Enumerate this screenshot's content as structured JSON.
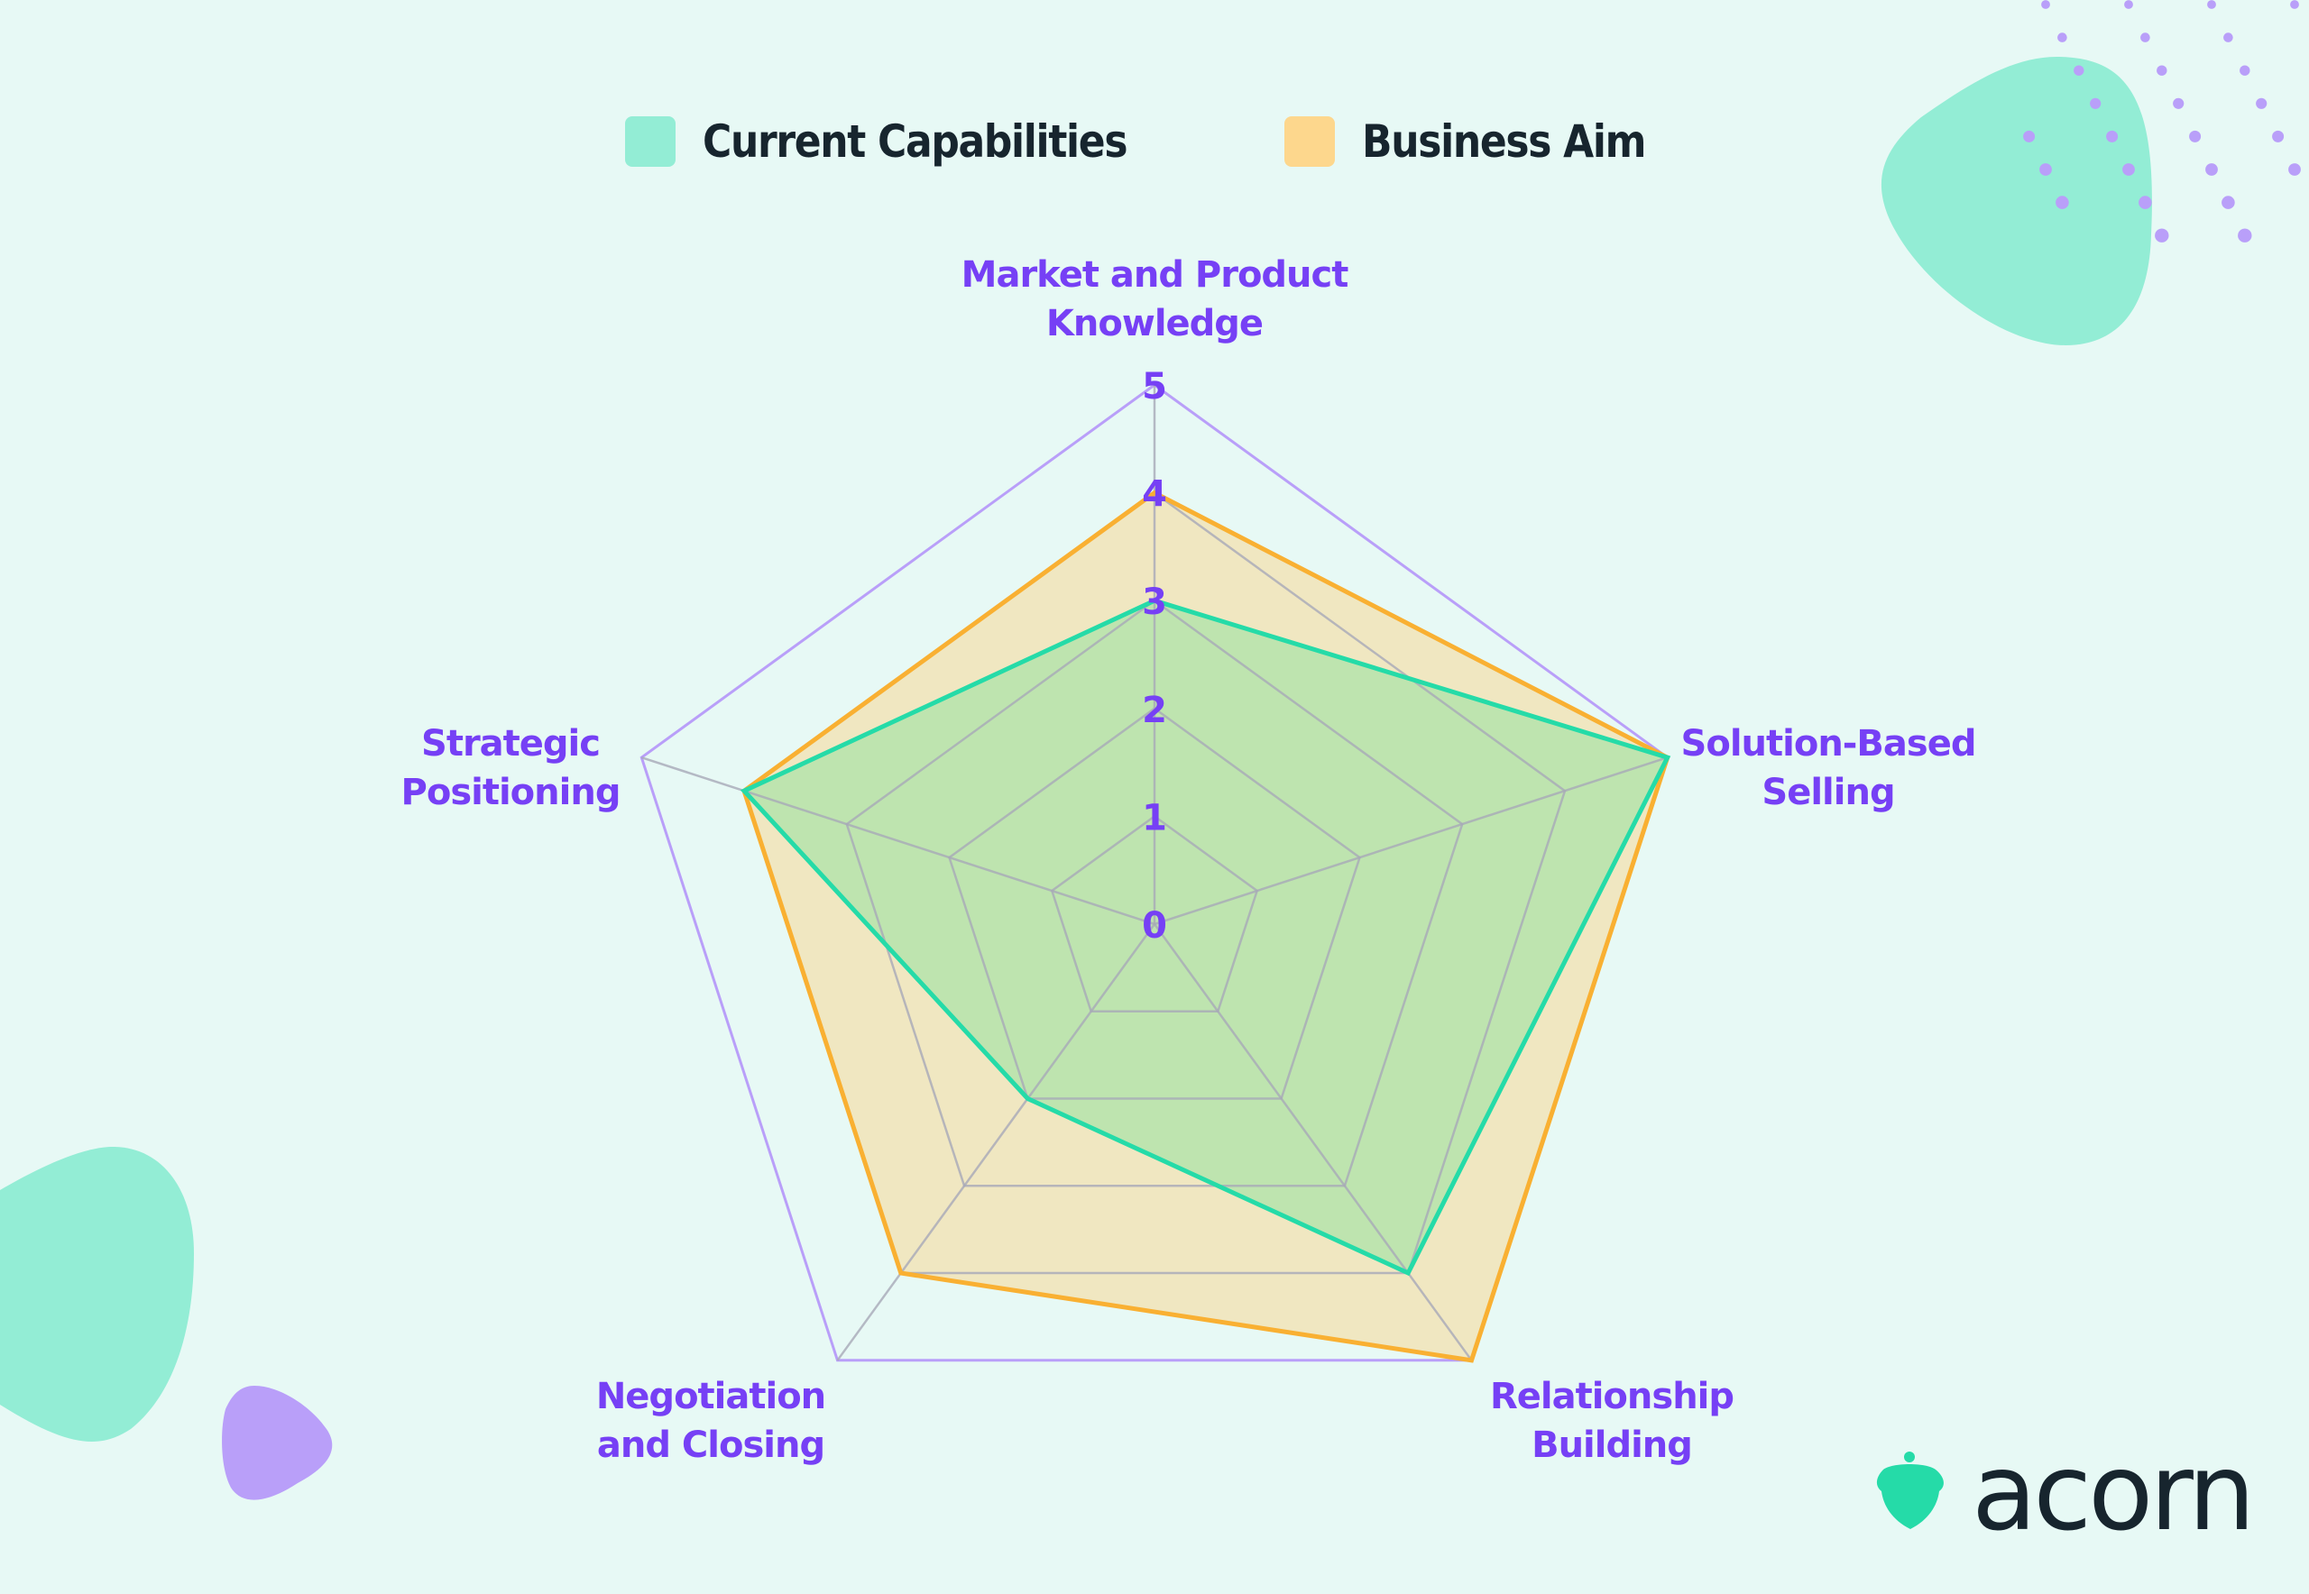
{
  "legend": {
    "items": [
      {
        "label": "Current Capabilities",
        "color": "#93edd5"
      },
      {
        "label": "Business Aim",
        "color": "#fdd78d"
      }
    ]
  },
  "brand": {
    "name": "acorn",
    "logo_icon": "acorn-icon",
    "logo_color": "#25dba8",
    "text_color": "#17252e"
  },
  "colors": {
    "background": "#e7f9f5",
    "label": "#7640f5",
    "current_stroke": "#25dba8",
    "current_fill": "rgba(150,226,160,0.55)",
    "aim_stroke": "#f9b032",
    "aim_fill": "rgba(248,216,150,0.55)",
    "grid_outer": "#b99ff9",
    "grid_inner": "#a7a9b8",
    "blob_green": "#93edd5",
    "blob_purple": "#b99ff9"
  },
  "chart_data": {
    "type": "radar",
    "title": "",
    "categories": [
      "Market and Product Knowledge",
      "Solution-Based Selling",
      "Relationship Building",
      "Negotiation and Closing",
      "Strategic Positioning"
    ],
    "display_labels": [
      "Market and Product\nKnowledge",
      "Solution-Based\nSelling",
      "Relationship\nBuilding",
      "Negotiation\nand Closing",
      "Strategic\nPositioning"
    ],
    "series": [
      {
        "name": "Current Capabilities",
        "values": [
          3,
          5,
          4,
          2,
          4
        ]
      },
      {
        "name": "Business Aim",
        "values": [
          4,
          5,
          5,
          4,
          4
        ]
      }
    ],
    "radial_ticks": [
      "0",
      "1",
      "2",
      "3",
      "4",
      "5"
    ],
    "rlim": [
      0,
      5
    ],
    "legend_position": "top",
    "grid": true
  }
}
